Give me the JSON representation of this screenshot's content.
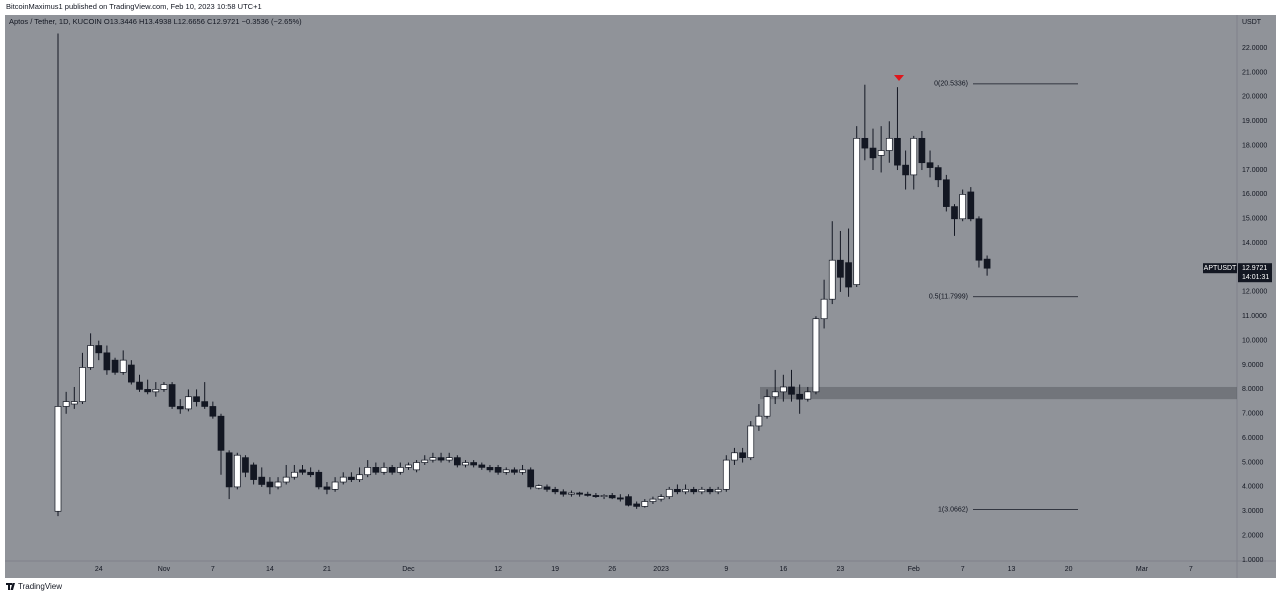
{
  "chart_data": {
    "type": "candlestick",
    "published": "BitcoinMaximus1 published on TradingView.com, Feb 10, 2023 10:58 UTC+1",
    "legend": {
      "symbol": "Aptos / Tether, 1D, KUCOIN",
      "open": "O13.3446",
      "high": "H13.4938",
      "low": "L12.6656",
      "close": "C12.9721",
      "change": "−0.3536 (−2.65%)"
    },
    "currency": "USDT",
    "ticker": "APTUSDT",
    "last_price": 12.9721,
    "countdown": "14:01:31",
    "brand": "TradingView",
    "up_color": "#ffffff",
    "down_color": "#131722",
    "background": "#909399",
    "grid": false,
    "categories": [
      null,
      null,
      null,
      null,
      null,
      "24",
      null,
      null,
      null,
      null,
      null,
      null,
      null,
      "Nov",
      null,
      null,
      null,
      null,
      null,
      "7",
      null,
      null,
      null,
      null,
      null,
      null,
      "14",
      null,
      null,
      null,
      null,
      null,
      null,
      "21",
      null,
      null,
      null,
      null,
      null,
      null,
      null,
      null,
      null,
      "Dec",
      null,
      null,
      null,
      null,
      null,
      null,
      null,
      null,
      null,
      null,
      "12",
      null,
      null,
      null,
      null,
      null,
      null,
      "19",
      null,
      null,
      null,
      null,
      null,
      null,
      "26",
      null,
      null,
      null,
      null,
      null,
      "2023",
      null,
      null,
      null,
      null,
      null,
      null,
      null,
      "9",
      null,
      null,
      null,
      null,
      null,
      null,
      "16",
      null,
      null,
      null,
      null,
      null,
      null,
      "23",
      null,
      null,
      null,
      null,
      null,
      null,
      null,
      null,
      "Feb",
      null,
      null,
      null,
      null,
      null,
      "7",
      null,
      null,
      null,
      null,
      null,
      "13",
      null,
      null,
      null,
      null,
      null,
      null,
      "20",
      null,
      null,
      null,
      null,
      null,
      null,
      null,
      null,
      "Mar",
      null,
      null,
      null,
      null,
      null,
      "7",
      null
    ],
    "open": [
      3.0,
      7.3,
      7.4,
      7.5,
      8.9,
      9.8,
      9.5,
      9.2,
      8.7,
      9.0,
      8.3,
      8.0,
      7.9,
      8.0,
      8.2,
      7.3,
      7.2,
      7.7,
      7.5,
      7.3,
      6.9,
      5.4,
      4.0,
      5.2,
      4.9,
      4.4,
      4.2,
      4.0,
      4.2,
      4.4,
      4.7,
      4.6,
      4.6,
      4.0,
      3.9,
      4.2,
      4.4,
      4.3,
      4.5,
      4.8,
      4.6,
      4.8,
      4.6,
      4.8,
      4.7,
      5.0,
      5.1,
      5.2,
      5.1,
      5.2,
      4.9,
      5.0,
      4.9,
      4.8,
      4.8,
      4.6,
      4.7,
      4.6,
      4.7,
      3.95,
      4.0,
      3.9,
      3.8,
      3.7,
      3.75,
      3.7,
      3.65,
      3.6,
      3.65,
      3.55,
      3.6,
      3.3,
      3.2,
      3.4,
      3.5,
      3.6,
      3.9,
      3.8,
      3.9,
      3.8,
      3.9,
      3.8,
      3.9,
      5.1,
      5.4,
      5.2,
      6.5,
      6.9,
      7.7,
      7.9,
      8.1,
      7.8,
      7.6,
      7.9,
      10.9,
      11.7,
      13.3,
      13.2,
      12.3,
      18.3,
      17.9,
      17.6,
      17.8,
      18.3,
      17.2,
      16.8,
      18.3,
      17.3,
      17.1,
      16.6,
      15.5,
      15.0,
      16.1,
      15.0,
      13.3446,
      null,
      null,
      null,
      null,
      null,
      null,
      null,
      null,
      null,
      null,
      null,
      null,
      null,
      null,
      null,
      null,
      null,
      null,
      null,
      null,
      null,
      null,
      null,
      null,
      null,
      null
    ],
    "high": [
      22.6,
      7.9,
      8.1,
      9.5,
      10.3,
      10.0,
      9.8,
      9.3,
      9.6,
      9.2,
      8.6,
      8.4,
      8.3,
      8.3,
      8.3,
      7.6,
      8.0,
      8.0,
      8.3,
      7.5,
      7.0,
      5.5,
      5.4,
      5.3,
      5.0,
      4.8,
      4.4,
      4.4,
      4.9,
      4.9,
      4.9,
      4.8,
      4.7,
      4.2,
      4.4,
      4.6,
      4.6,
      4.8,
      5.1,
      5.0,
      5.0,
      4.9,
      5.0,
      5.0,
      5.1,
      5.3,
      5.4,
      5.4,
      5.4,
      5.3,
      5.1,
      5.1,
      5.0,
      4.9,
      4.9,
      4.8,
      4.8,
      4.9,
      4.8,
      4.1,
      4.1,
      4.0,
      3.9,
      3.85,
      3.8,
      3.8,
      3.75,
      3.7,
      3.75,
      3.7,
      3.7,
      3.4,
      3.5,
      3.6,
      3.7,
      4.0,
      4.1,
      4.1,
      4.0,
      4.0,
      4.0,
      4.0,
      5.3,
      5.6,
      5.6,
      6.7,
      7.4,
      8.0,
      8.8,
      8.6,
      8.8,
      8.2,
      8.1,
      11.0,
      12.5,
      14.9,
      14.5,
      14.6,
      18.8,
      20.5,
      18.7,
      18.8,
      19.0,
      20.4,
      17.8,
      18.4,
      18.6,
      17.8,
      17.2,
      16.8,
      15.6,
      16.2,
      16.3,
      15.1,
      13.4938,
      null,
      null,
      null,
      null,
      null,
      null,
      null,
      null,
      null,
      null,
      null,
      null,
      null,
      null,
      null,
      null,
      null,
      null,
      null,
      null,
      null,
      null,
      null,
      null,
      null,
      null
    ],
    "low": [
      2.8,
      7.0,
      7.2,
      7.4,
      8.8,
      9.2,
      8.6,
      8.6,
      8.6,
      8.2,
      7.9,
      7.8,
      7.7,
      7.9,
      7.2,
      7.0,
      7.1,
      7.3,
      7.2,
      6.8,
      4.5,
      3.5,
      3.9,
      4.4,
      4.1,
      4.0,
      3.7,
      3.9,
      4.1,
      4.3,
      4.5,
      4.4,
      3.9,
      3.7,
      3.8,
      4.1,
      4.2,
      4.2,
      4.4,
      4.5,
      4.5,
      4.5,
      4.5,
      4.7,
      4.6,
      4.9,
      5.0,
      5.0,
      5.0,
      4.8,
      4.8,
      4.8,
      4.7,
      4.6,
      4.5,
      4.5,
      4.5,
      4.5,
      3.9,
      3.9,
      3.8,
      3.7,
      3.6,
      3.6,
      3.6,
      3.6,
      3.55,
      3.5,
      3.5,
      3.4,
      3.2,
      3.1,
      3.15,
      3.3,
      3.4,
      3.5,
      3.7,
      3.7,
      3.7,
      3.7,
      3.7,
      3.7,
      3.8,
      4.9,
      5.0,
      5.1,
      6.3,
      6.8,
      7.4,
      7.5,
      7.5,
      7.0,
      7.5,
      7.8,
      10.5,
      11.5,
      12.0,
      11.8,
      12.2,
      17.4,
      17.0,
      16.9,
      17.3,
      17.0,
      16.2,
      16.2,
      17.0,
      16.7,
      16.3,
      15.3,
      14.3,
      14.9,
      14.9,
      13.0,
      12.6656,
      null,
      null,
      null,
      null,
      null,
      null,
      null,
      null,
      null,
      null,
      null,
      null,
      null,
      null,
      null,
      null,
      null,
      null,
      null,
      null,
      null,
      null,
      null,
      null,
      null,
      null
    ],
    "close": [
      7.3,
      7.5,
      7.5,
      8.9,
      9.8,
      9.5,
      8.8,
      8.7,
      9.2,
      8.3,
      8.0,
      7.9,
      8.0,
      8.2,
      7.3,
      7.2,
      7.7,
      7.5,
      7.3,
      6.9,
      5.5,
      4.0,
      5.3,
      4.6,
      4.3,
      4.1,
      4.0,
      4.2,
      4.4,
      4.6,
      4.6,
      4.5,
      4.0,
      3.9,
      4.2,
      4.4,
      4.3,
      4.5,
      4.8,
      4.6,
      4.8,
      4.6,
      4.8,
      4.9,
      5.0,
      5.1,
      5.2,
      5.1,
      5.2,
      4.9,
      5.0,
      4.9,
      4.8,
      4.7,
      4.6,
      4.7,
      4.6,
      4.7,
      4.0,
      4.05,
      3.9,
      3.8,
      3.7,
      3.75,
      3.7,
      3.65,
      3.6,
      3.65,
      3.55,
      3.5,
      3.25,
      3.2,
      3.4,
      3.5,
      3.6,
      3.9,
      3.8,
      3.9,
      3.8,
      3.9,
      3.8,
      3.9,
      5.1,
      5.4,
      5.2,
      6.5,
      6.9,
      7.7,
      7.9,
      8.1,
      7.8,
      7.6,
      7.9,
      10.9,
      11.7,
      13.3,
      12.6,
      12.2,
      18.3,
      17.9,
      17.5,
      17.8,
      18.3,
      17.2,
      16.8,
      18.3,
      17.3,
      17.1,
      16.6,
      15.5,
      15.0,
      16.0,
      15.0,
      13.3,
      12.9721,
      null,
      null,
      null,
      null,
      null,
      null,
      null,
      null,
      null,
      null,
      null,
      null,
      null,
      null,
      null,
      null,
      null,
      null,
      null,
      null,
      null,
      null,
      null,
      null,
      null,
      null
    ],
    "fib_levels": {
      "values": [
        20.5336,
        11.7999,
        3.0662
      ],
      "value_labels": [
        "0(20.5336)",
        "0.5(11.7999)",
        "1(3.0662)"
      ]
    },
    "zone": [
      7.6,
      8.1
    ],
    "ylim": [
      0.96,
      23.36
    ],
    "yticks": [
      {
        "value": 1,
        "label": "1.0000"
      },
      {
        "value": 2,
        "label": "2.0000"
      },
      {
        "value": 3,
        "label": "3.0000"
      },
      {
        "value": 4,
        "label": "4.0000"
      },
      {
        "value": 5,
        "label": "5.0000"
      },
      {
        "value": 6,
        "label": "6.0000"
      },
      {
        "value": 7,
        "label": "7.0000"
      },
      {
        "value": 8,
        "label": "8.0000"
      },
      {
        "value": 9,
        "label": "9.0000"
      },
      {
        "value": 10,
        "label": "10.0000"
      },
      {
        "value": 11,
        "label": "11.0000"
      },
      {
        "value": 12,
        "label": "12.0000"
      },
      {
        "value": 13,
        "label": "13.0000"
      },
      {
        "value": 14,
        "label": "14.0000"
      },
      {
        "value": 15,
        "label": "15.0000"
      },
      {
        "value": 16,
        "label": "16.0000"
      },
      {
        "value": 17,
        "label": "17.0000"
      },
      {
        "value": 18,
        "label": "18.0000"
      },
      {
        "value": 19,
        "label": "19.0000"
      },
      {
        "value": 20,
        "label": "20.0000"
      },
      {
        "value": 21,
        "label": "21.0000"
      },
      {
        "value": 22,
        "label": "22.0000"
      }
    ]
  }
}
